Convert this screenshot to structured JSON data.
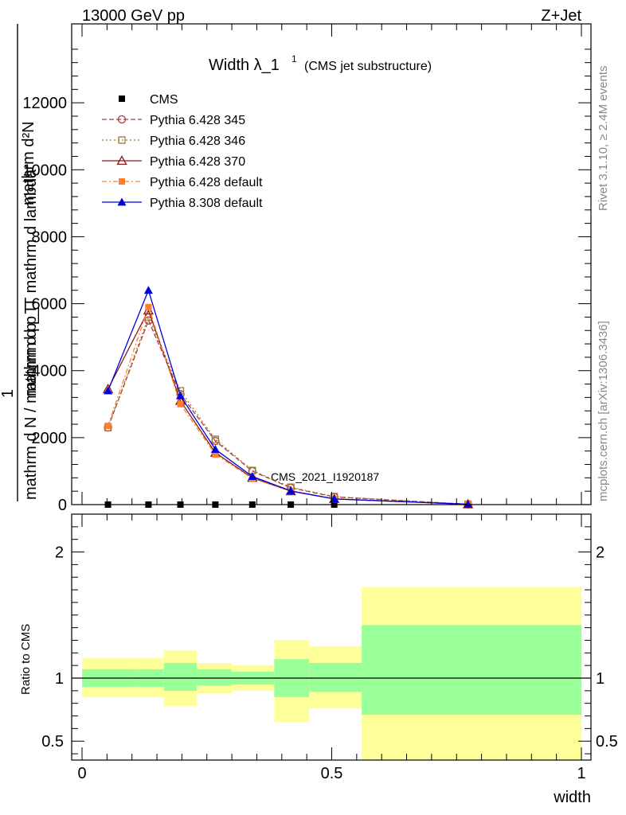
{
  "header": {
    "energy": "13000 GeV pp",
    "process": "Z+Jet",
    "title_main": "Width λ_1",
    "title_sup": "1",
    "title_sub": "(CMS jet substructure)",
    "watermark": "CMS_2021_I1920187",
    "rivet_label": "Rivet 3.1.10, ≥ 2.4M events",
    "mcplots_label": "mcplots.cern.ch [arXiv:1306.3436]"
  },
  "axes": {
    "ylabel_top_num": "mathrm d²N",
    "ylabel_top_den": "mathrm d p_T mathrm d lambda",
    "ylabel_bot_num": "1",
    "ylabel_bot_den": "mathrm d N / mathrm d p_T",
    "ratio_ylabel": "Ratio to CMS",
    "xlabel": "width",
    "main_ylim": [
      0,
      14000
    ],
    "main_yticks": [
      {
        "v": 0,
        "label": "0"
      },
      {
        "v": 2000,
        "label": "2000"
      },
      {
        "v": 4000,
        "label": "4000"
      },
      {
        "v": 6000,
        "label": "6000"
      },
      {
        "v": 8000,
        "label": "8000"
      },
      {
        "v": 10000,
        "label": "10000"
      },
      {
        "v": 12000,
        "label": "12000"
      }
    ],
    "ratio_ylim": [
      0.35,
      2.3
    ],
    "ratio_yticks": [
      {
        "v": 0.5,
        "label": "0.5"
      },
      {
        "v": 1,
        "label": "1"
      },
      {
        "v": 2,
        "label": "2"
      }
    ],
    "xlim": [
      0,
      1
    ],
    "xticks": [
      {
        "v": 0,
        "label": "0"
      },
      {
        "v": 0.5,
        "label": "0.5"
      },
      {
        "v": 1,
        "label": "1"
      }
    ]
  },
  "chart_data": {
    "type": "line",
    "title": "Width λ_1¹ (CMS jet substructure)",
    "xlabel": "width",
    "x": [
      0.052,
      0.133,
      0.197,
      0.267,
      0.341,
      0.418,
      0.505,
      0.773
    ],
    "bin_edges": [
      0,
      0.105,
      0.164,
      0.23,
      0.3,
      0.385,
      0.455,
      0.56,
      1.0
    ],
    "series": [
      {
        "name": "CMS",
        "color": "#000000",
        "marker": "square",
        "dash": "",
        "values": [
          0,
          0,
          0,
          0,
          0,
          0,
          0,
          0
        ]
      },
      {
        "name": "Pythia 6.428 345",
        "color": "#b03a3a",
        "marker": "circle-open",
        "dash": "6,3",
        "values": [
          2300,
          5500,
          3300,
          1900,
          1000,
          500,
          230,
          10
        ]
      },
      {
        "name": "Pythia 6.428 346",
        "color": "#9a7a3a",
        "marker": "square-open",
        "dash": "2,3",
        "values": [
          2300,
          5600,
          3400,
          1950,
          1020,
          520,
          240,
          10
        ]
      },
      {
        "name": "Pythia 6.428 370",
        "color": "#8b1a1a",
        "marker": "triangle-open",
        "dash": "",
        "values": [
          3450,
          5800,
          3100,
          1550,
          800,
          400,
          170,
          10
        ]
      },
      {
        "name": "Pythia 6.428 default",
        "color": "#ff7f2a",
        "marker": "square-filled",
        "dash": "6,3,2,3",
        "values": [
          2350,
          5900,
          3000,
          1500,
          780,
          400,
          180,
          10
        ]
      },
      {
        "name": "Pythia 8.308 default",
        "color": "#0000dd",
        "marker": "triangle-filled",
        "dash": "",
        "values": [
          3400,
          6400,
          3250,
          1650,
          840,
          410,
          170,
          10
        ]
      }
    ],
    "ratio_bands": {
      "x_edges": [
        0,
        0.105,
        0.164,
        0.23,
        0.3,
        0.385,
        0.455,
        0.56,
        1.0
      ],
      "inner_lo": [
        0.93,
        0.93,
        0.9,
        0.94,
        0.95,
        0.85,
        0.89,
        0.71
      ],
      "inner_hi": [
        1.07,
        1.07,
        1.12,
        1.07,
        1.05,
        1.15,
        1.12,
        1.42
      ],
      "outer_lo": [
        0.85,
        0.85,
        0.78,
        0.88,
        0.9,
        0.65,
        0.76,
        0.35
      ],
      "outer_hi": [
        1.16,
        1.16,
        1.22,
        1.12,
        1.1,
        1.3,
        1.25,
        1.72
      ],
      "inner_color": "#99ff99",
      "outer_color": "#ffff99"
    }
  }
}
